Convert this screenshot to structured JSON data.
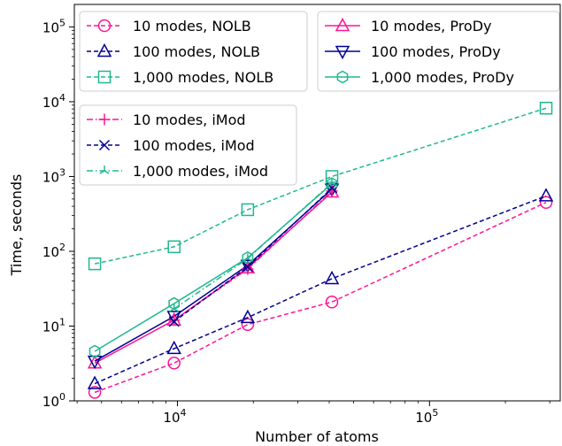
{
  "chart_data": {
    "type": "line",
    "xlabel": "Number of atoms",
    "ylabel": "Time, seconds",
    "xscale": "log",
    "yscale": "log",
    "xlim": [
      3900,
      330000
    ],
    "ylim": [
      1,
      200000
    ],
    "x_ticks": [
      {
        "value": 10000,
        "base": "10",
        "exp": "4"
      },
      {
        "value": 100000,
        "base": "10",
        "exp": "5"
      }
    ],
    "y_ticks": [
      {
        "value": 1,
        "base": "10",
        "exp": "0"
      },
      {
        "value": 10,
        "base": "10",
        "exp": "1"
      },
      {
        "value": 100,
        "base": "10",
        "exp": "2"
      },
      {
        "value": 1000,
        "base": "10",
        "exp": "3"
      },
      {
        "value": 10000,
        "base": "10",
        "exp": "4"
      },
      {
        "value": 100000,
        "base": "10",
        "exp": "5"
      }
    ],
    "grid": false,
    "legends": [
      {
        "placement": "top-left",
        "entries": [
          0,
          1,
          2
        ]
      },
      {
        "placement": "top-right",
        "entries": [
          3,
          4,
          5
        ]
      },
      {
        "placement": "upper-left",
        "entries": [
          6,
          7,
          8
        ]
      }
    ],
    "series": [
      {
        "name": "10 modes, NOLB",
        "color": "#ff1493",
        "marker": "circle",
        "line": "dashed",
        "x": [
          4700,
          9700,
          19000,
          41000,
          290000
        ],
        "y": [
          1.3,
          3.2,
          10.5,
          21,
          450
        ]
      },
      {
        "name": "100 modes, NOLB",
        "color": "#000090",
        "marker": "triangle-up",
        "line": "dashed",
        "x": [
          4700,
          9700,
          19000,
          41000,
          290000
        ],
        "y": [
          1.7,
          5,
          13,
          43,
          550
        ]
      },
      {
        "name": "1,000 modes, NOLB",
        "color": "#20b890",
        "marker": "square",
        "line": "dashed",
        "x": [
          4700,
          9700,
          19000,
          41000,
          290000
        ],
        "y": [
          68,
          115,
          360,
          1000,
          8200
        ]
      },
      {
        "name": "10 modes, ProDy",
        "color": "#ff1493",
        "marker": "triangle-up",
        "line": "solid",
        "x": [
          4700,
          9700,
          19000,
          41000
        ],
        "y": [
          3.2,
          12,
          60,
          620
        ]
      },
      {
        "name": "100 modes, ProDy",
        "color": "#000090",
        "marker": "triangle-down",
        "line": "solid",
        "x": [
          4700,
          9700,
          19000,
          41000
        ],
        "y": [
          3.4,
          13.5,
          65,
          680
        ]
      },
      {
        "name": "1,000 modes, ProDy",
        "color": "#20b890",
        "marker": "hexagon",
        "line": "solid",
        "x": [
          4700,
          9700,
          19000,
          41000
        ],
        "y": [
          4.6,
          20,
          82,
          800
        ]
      },
      {
        "name": "10 modes, iMod",
        "color": "#ff1493",
        "marker": "plus",
        "line": "dashdot",
        "x": [
          9700,
          19000,
          41000
        ],
        "y": [
          12,
          58,
          640
        ]
      },
      {
        "name": "100 modes, iMod",
        "color": "#000090",
        "marker": "x",
        "line": "dashed",
        "x": [
          9700,
          19000,
          41000
        ],
        "y": [
          11.5,
          62,
          700
        ]
      },
      {
        "name": "1,000 modes, iMod",
        "color": "#20b890",
        "marker": "tri-up",
        "line": "dashdot",
        "x": [
          9700,
          19000,
          41000
        ],
        "y": [
          17,
          80,
          820
        ]
      }
    ]
  }
}
